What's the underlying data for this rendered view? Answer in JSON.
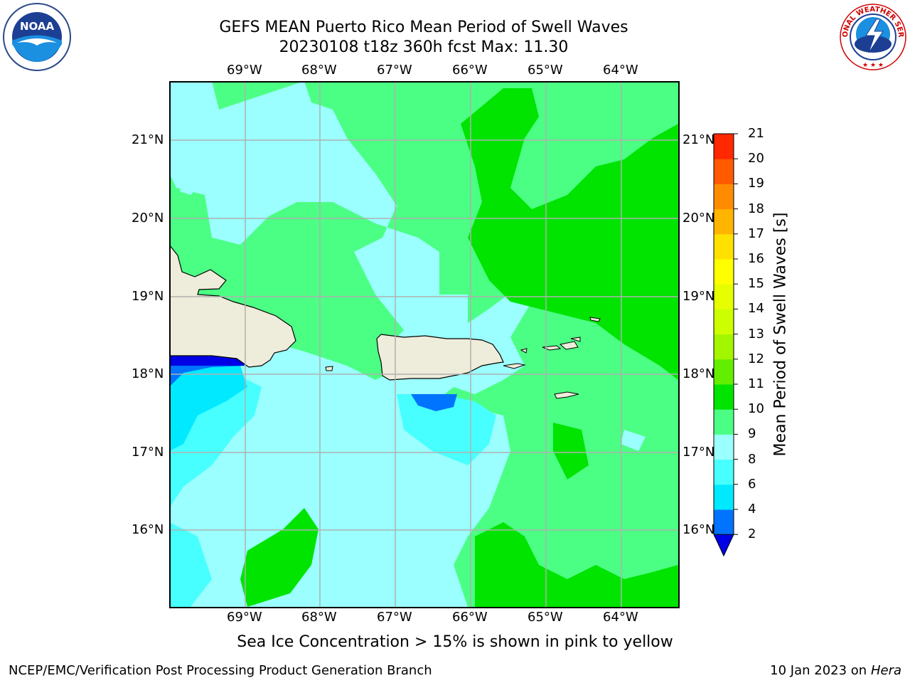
{
  "title": {
    "line1": "GEFS MEAN Puerto Rico Mean Period of Swell Waves",
    "line2": "20230108 t18z 360h fcst   Max: 11.30"
  },
  "logos": {
    "left": "NOAA",
    "right_top": "NATIONAL WEATHER SERVICE"
  },
  "map": {
    "lon_labels": [
      "69°W",
      "68°W",
      "67°W",
      "66°W",
      "65°W",
      "64°W"
    ],
    "lat_labels": [
      "21°N",
      "20°N",
      "19°N",
      "18°N",
      "17°N",
      "16°N"
    ],
    "colors": {
      "land": "#eeecda",
      "c2_4": "#0073ff",
      "c4_6": "#00e9ff",
      "c6_8": "#47ffff",
      "c8_9": "#9bffff",
      "c9_10": "#4bff84",
      "c10_11": "#00e400"
    }
  },
  "colorbar": {
    "label": "Mean Period of Swell Waves [s]",
    "ticks": [
      "21",
      "20",
      "19",
      "18",
      "17",
      "16",
      "15",
      "14",
      "13",
      "12",
      "11",
      "10",
      "9",
      "8",
      "6",
      "4",
      "2"
    ],
    "colors": [
      "#0000e6",
      "#0073ff",
      "#00e9ff",
      "#47ffff",
      "#9bffff",
      "#4bff84",
      "#00e400",
      "#63ee00",
      "#a3f500",
      "#cdff00",
      "#e6ff00",
      "#ffff00",
      "#ffe100",
      "#ffb400",
      "#ff8c00",
      "#ff5a00",
      "#ff2800",
      "#ff0000"
    ]
  },
  "note": "Sea Ice Concentration > 15% is shown in pink to yellow",
  "footer": {
    "left": "NCEP/EMC/Verification Post Processing Product Generation Branch",
    "right_prefix": "10 Jan 2023 on ",
    "right_host": "Hera"
  }
}
